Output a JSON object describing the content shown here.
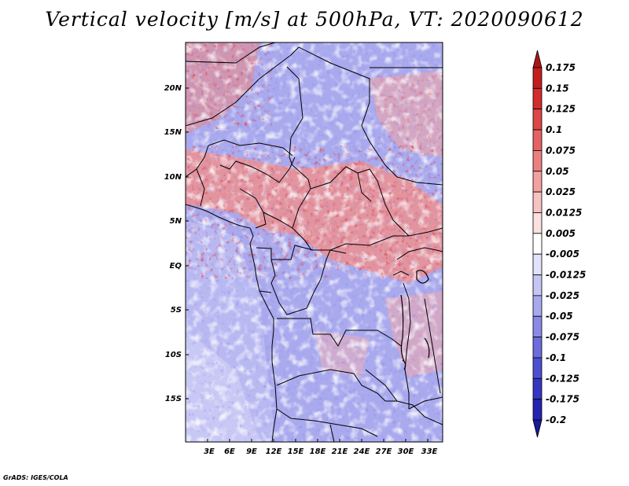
{
  "map": {
    "title": "Vertical velocity [m/s] at 500hPa, VT: 2020090612",
    "variable": "Vertical velocity",
    "units": "m/s",
    "level": "500hPa",
    "valid_time": "2020090612",
    "lat_labels": [
      "20N",
      "15N",
      "10N",
      "5N",
      "EQ",
      "5S",
      "10S",
      "15S"
    ],
    "lon_labels": [
      "3E",
      "6E",
      "9E",
      "12E",
      "15E",
      "18E",
      "21E",
      "24E",
      "27E",
      "30E",
      "33E"
    ],
    "region": "Central Africa"
  },
  "colorbar": {
    "labels": [
      "0.175",
      "0.15",
      "0.125",
      "0.1",
      "0.075",
      "0.05",
      "0.025",
      "0.0125",
      "0.005",
      "-0.005",
      "-0.0125",
      "-0.025",
      "-0.05",
      "-0.075",
      "-0.1",
      "-0.125",
      "-0.175",
      "-0.2"
    ],
    "colors": [
      "#aa1616",
      "#c21e1e",
      "#d22c2c",
      "#dd4646",
      "#e66262",
      "#ec8080",
      "#f2a0a0",
      "#f7c2c2",
      "#fbe0e0",
      "#ffffff",
      "#e2e2fa",
      "#c6c6f5",
      "#a8a8ee",
      "#8a8ae6",
      "#6c6cdc",
      "#4e4ed0",
      "#3636c2",
      "#2424b0",
      "#1a1a9a"
    ]
  },
  "credit": "GrADS: IGES/COLA"
}
